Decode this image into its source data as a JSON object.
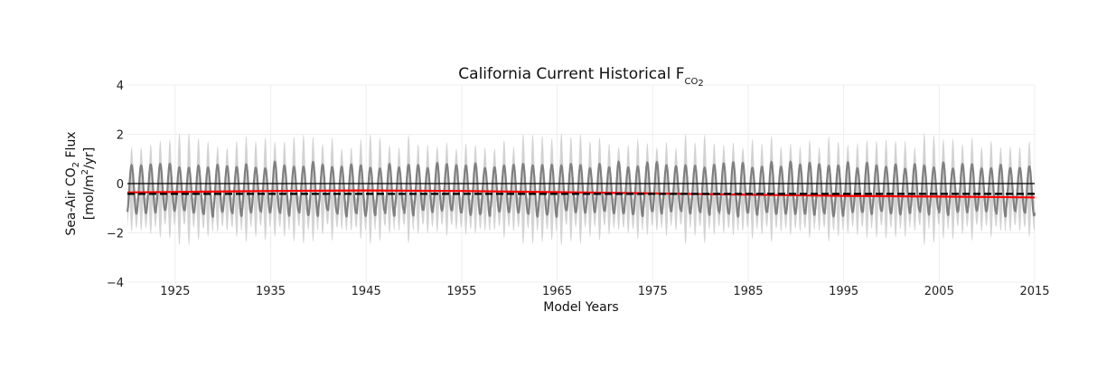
{
  "chart_data": {
    "type": "line",
    "title": {
      "main": "California Current Historical F",
      "subscript": "CO",
      "subscript2": "2"
    },
    "xlabel": "Model Years",
    "ylabel": {
      "line1_a": "Sea-Air CO",
      "line1_sub": "2",
      "line1_b": " Flux",
      "line2_a": "[mol/m",
      "line2_sup": "2",
      "line2_b": "/yr]"
    },
    "xlim": [
      1920,
      2015
    ],
    "ylim": [
      -4,
      4
    ],
    "xticks": [
      1925,
      1935,
      1945,
      1955,
      1965,
      1975,
      1985,
      1995,
      2005,
      2015
    ],
    "xtick_labels": [
      "1925",
      "1935",
      "1945",
      "1955",
      "1965",
      "1975",
      "1985",
      "1995",
      "2005",
      "2015"
    ],
    "yticks": [
      -4,
      -2,
      0,
      2,
      4
    ],
    "ytick_labels": [
      "−4",
      "−2",
      "0",
      "2",
      "4"
    ],
    "grid": true,
    "seasonal_cycle": {
      "ensemble_mean_max": 0.75,
      "ensemble_mean_min": -1.2,
      "spread_max": 1.7,
      "spread_min": -2.1,
      "cycles_per_year": 1
    },
    "series": [
      {
        "role": "ensemble-spread",
        "color": "#d3d3d3"
      },
      {
        "role": "ensemble-mean",
        "color": "#808080"
      },
      {
        "role": "trend-line",
        "color": "#ff0000",
        "x": [
          1920,
          1935,
          1945,
          1955,
          1965,
          1975,
          1985,
          1995,
          2005,
          2015
        ],
        "values": [
          -0.36,
          -0.3,
          -0.28,
          -0.3,
          -0.35,
          -0.4,
          -0.45,
          -0.5,
          -0.53,
          -0.56
        ]
      },
      {
        "role": "long-term-mean",
        "color": "#000000",
        "style": "dashed",
        "x": [
          1920,
          2015
        ],
        "values": [
          -0.42,
          -0.42
        ]
      },
      {
        "role": "zero-line",
        "color": "#000000",
        "x": [
          1920,
          2015
        ],
        "values": [
          0,
          0
        ]
      }
    ]
  }
}
